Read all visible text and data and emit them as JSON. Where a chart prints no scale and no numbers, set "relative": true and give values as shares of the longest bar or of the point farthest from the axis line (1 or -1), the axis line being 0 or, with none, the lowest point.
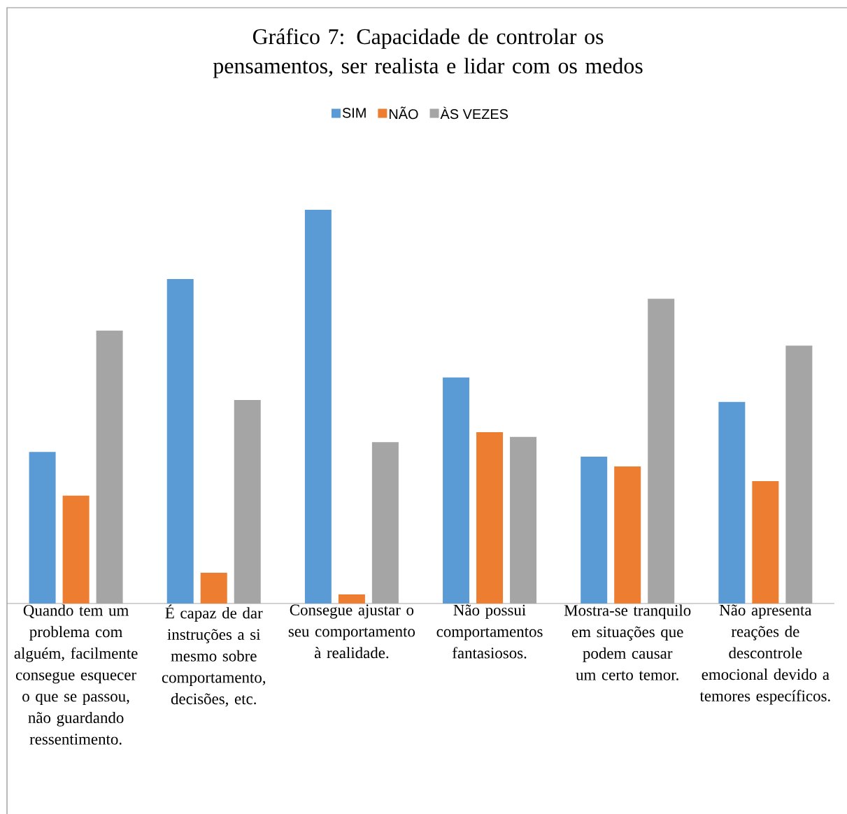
{
  "chart_data": {
    "type": "bar",
    "title": "Gráfico 7: Capacidade de controlar os pensamentos, ser realista e lidar com os medos",
    "categories": [
      "Quando tem um problema com alguém, facilmente consegue esquecer o que se passou, não guardando ressentimento.",
      "É capaz de dar instruções a si mesmo sobre comportamento, decisões, etc.",
      "Consegue ajustar o seu comportamento à realidade.",
      "Não possui comportamentos fantasiosos.",
      "Mostra-se tranquilo em situações que podem causar um certo temor.",
      "Não apresenta reações de descontrole emocional devido a temores específicos."
    ],
    "series": [
      {
        "name": "SIM",
        "color": "#5b9bd5",
        "values": [
          0.385,
          0.824,
          1,
          0.574,
          0.373,
          0.512
        ]
      },
      {
        "name": "NÃO",
        "color": "#ed7d31",
        "values": [
          0.274,
          0.078,
          0.023,
          0.435,
          0.348,
          0.311
        ]
      },
      {
        "name": "ÀS VEZES",
        "color": "#a5a5a5",
        "values": [
          0.693,
          0.517,
          0.41,
          0.423,
          0.774,
          0.655
        ]
      }
    ],
    "relative": true,
    "legend": "top",
    "grid": false
  }
}
